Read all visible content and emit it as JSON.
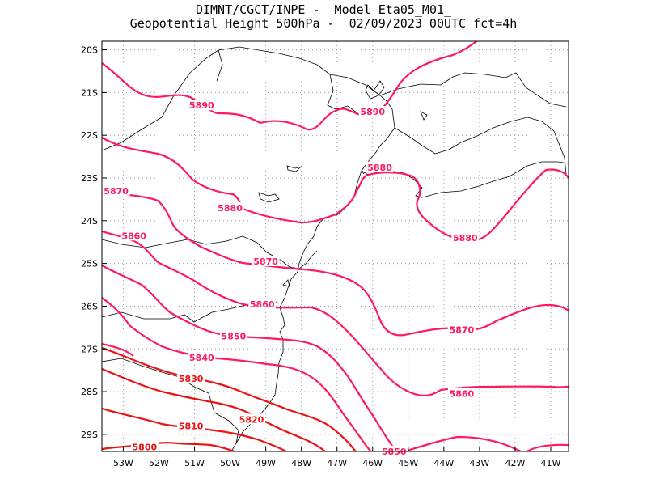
{
  "title": {
    "line1": "DIMNT/CGCT/INPE -  Model Eta05_M01_",
    "line2": "Geopotential Height 500hPa -  02/09/2023 00UTC fct=4h"
  },
  "map": {
    "lon_range": [
      -53.6,
      -40.5
    ],
    "lat_range": [
      -29.4,
      -19.8
    ],
    "lon_ticks": [
      "53W",
      "52W",
      "51W",
      "50W",
      "49W",
      "48W",
      "47W",
      "46W",
      "45W",
      "44W",
      "43W",
      "42W",
      "41W"
    ],
    "lat_ticks": [
      "20S",
      "21S",
      "22S",
      "23S",
      "24S",
      "25S",
      "26S",
      "27S",
      "28S",
      "29S"
    ],
    "colors": {
      "magenta": "#ff1a5e",
      "red": "#ee1111",
      "border": "#000000",
      "grid": "#999999"
    },
    "contours": [
      {
        "value": 5890,
        "label": "5890",
        "color": "magenta",
        "labels_at": [
          [
            -50.8,
            -21.3
          ],
          [
            -46.0,
            -21.45
          ]
        ]
      },
      {
        "value": 5880,
        "label": "5880",
        "color": "magenta",
        "labels_at": [
          [
            -50.0,
            -23.7
          ],
          [
            -45.8,
            -22.75
          ],
          [
            -43.4,
            -24.4
          ]
        ]
      },
      {
        "value": 5870,
        "label": "5870",
        "color": "magenta",
        "labels_at": [
          [
            -53.2,
            -23.3
          ],
          [
            -49.0,
            -24.95
          ],
          [
            -43.5,
            -26.55
          ]
        ]
      },
      {
        "value": 5860,
        "label": "5860",
        "color": "magenta",
        "labels_at": [
          [
            -52.7,
            -24.35
          ],
          [
            -49.1,
            -25.95
          ],
          [
            -43.5,
            -28.05
          ]
        ]
      },
      {
        "value": 5850,
        "label": "5850",
        "color": "magenta",
        "labels_at": [
          [
            -49.9,
            -26.7
          ],
          [
            -45.4,
            -29.4
          ]
        ]
      },
      {
        "value": 5840,
        "label": "5840",
        "color": "magenta",
        "labels_at": [
          [
            -50.8,
            -27.2
          ]
        ]
      },
      {
        "value": 5830,
        "label": "5830",
        "color": "red",
        "labels_at": [
          [
            -51.1,
            -27.7
          ]
        ]
      },
      {
        "value": 5820,
        "label": "5820",
        "color": "red",
        "labels_at": [
          [
            -49.4,
            -28.65
          ]
        ]
      },
      {
        "value": 5810,
        "label": "5810",
        "color": "red",
        "labels_at": [
          [
            -51.1,
            -28.8
          ]
        ]
      },
      {
        "value": 5800,
        "label": "5800",
        "color": "red",
        "labels_at": [
          [
            -52.4,
            -29.3
          ]
        ]
      }
    ]
  }
}
